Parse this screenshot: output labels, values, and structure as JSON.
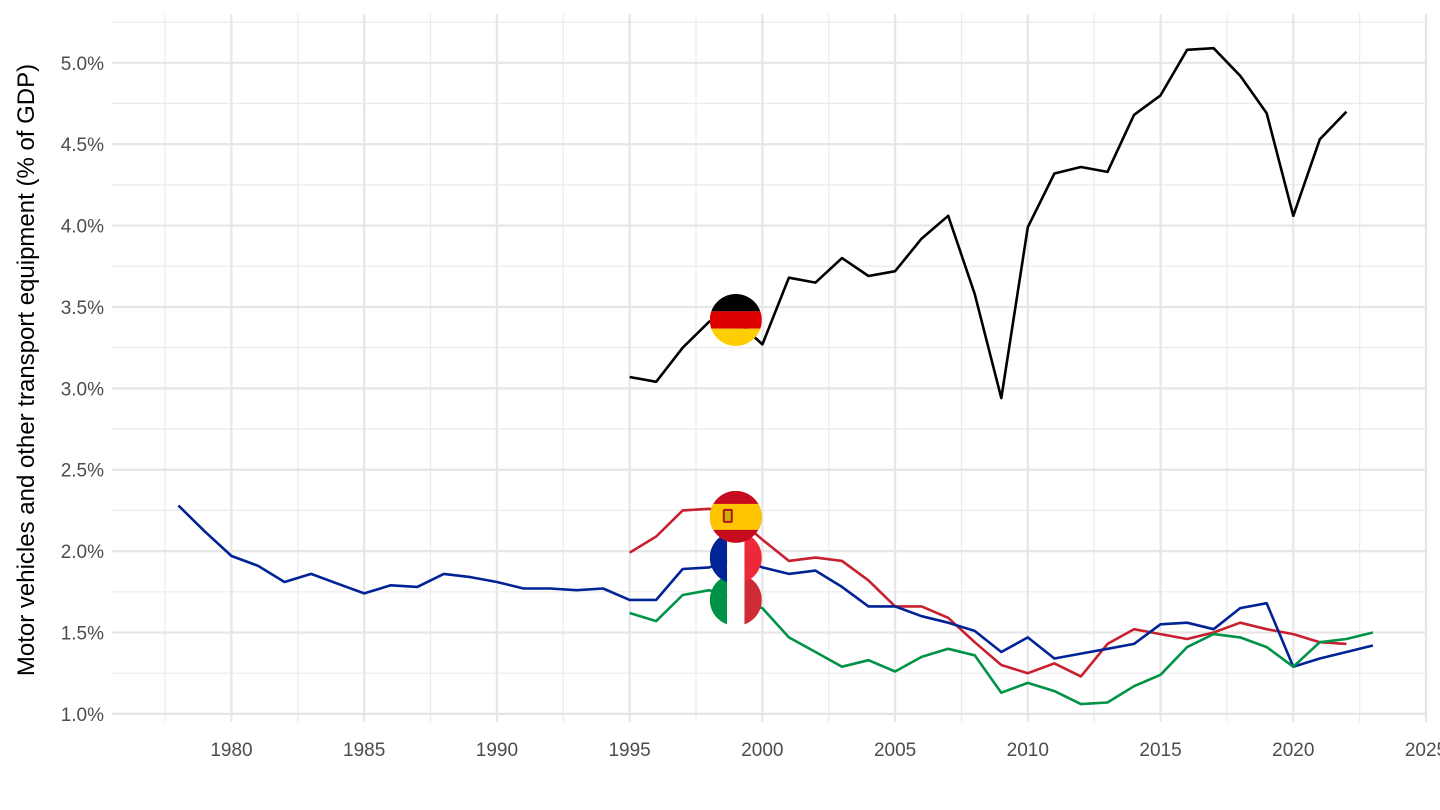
{
  "chart_data": {
    "type": "line",
    "title": "",
    "xlabel": "",
    "ylabel": "Motor vehicles and other transport equipment (% of GDP)",
    "xlim": [
      1975.5,
      2025
    ],
    "ylim": [
      0.95,
      5.3
    ],
    "x_ticks": [
      1980,
      1985,
      1990,
      1995,
      2000,
      2005,
      2010,
      2015,
      2020,
      2025
    ],
    "y_ticks": [
      1.0,
      1.5,
      2.0,
      2.5,
      3.0,
      3.5,
      4.0,
      4.5,
      5.0
    ],
    "y_tick_labels": [
      "1.0%",
      "1.5%",
      "2.0%",
      "2.5%",
      "3.0%",
      "3.5%",
      "4.0%",
      "4.5%",
      "5.0%"
    ],
    "x_tick_labels": [
      "1980",
      "1985",
      "1990",
      "1995",
      "2000",
      "2005",
      "2010",
      "2015",
      "2020",
      "2025"
    ],
    "grid": true,
    "legend": "flags at 1999",
    "flag_year": 1999,
    "series": [
      {
        "flag": "germany",
        "color": "#000000",
        "x": [
          1995,
          1996,
          1997,
          1998,
          1999,
          2000,
          2001,
          2002,
          2003,
          2004,
          2005,
          2006,
          2007,
          2008,
          2009,
          2010,
          2011,
          2012,
          2013,
          2014,
          2015,
          2016,
          2017,
          2018,
          2019,
          2020,
          2021,
          2022
        ],
        "values": [
          3.07,
          3.04,
          3.25,
          3.41,
          3.42,
          3.27,
          3.68,
          3.65,
          3.8,
          3.69,
          3.72,
          3.92,
          4.06,
          3.58,
          2.94,
          3.99,
          4.32,
          4.36,
          4.33,
          4.68,
          4.8,
          5.08,
          5.09,
          4.92,
          4.69,
          4.06,
          4.53,
          4.7
        ]
      },
      {
        "flag": "spain",
        "color": "#c8202f",
        "x": [
          1995,
          1996,
          1997,
          1998,
          1999,
          2000,
          2001,
          2002,
          2003,
          2004,
          2005,
          2006,
          2007,
          2008,
          2009,
          2010,
          2011,
          2012,
          2013,
          2014,
          2015,
          2016,
          2017,
          2018,
          2019,
          2020,
          2021,
          2022
        ],
        "values": [
          1.99,
          2.09,
          2.25,
          2.26,
          2.21,
          2.07,
          1.94,
          1.96,
          1.94,
          1.82,
          1.66,
          1.66,
          1.59,
          1.44,
          1.3,
          1.25,
          1.31,
          1.23,
          1.43,
          1.52,
          1.49,
          1.46,
          1.5,
          1.56,
          1.52,
          1.49,
          1.44,
          1.43
        ]
      },
      {
        "flag": "france",
        "color": "#002395",
        "x": [
          1978,
          1979,
          1980,
          1981,
          1982,
          1983,
          1984,
          1985,
          1986,
          1987,
          1988,
          1989,
          1990,
          1991,
          1992,
          1993,
          1994,
          1995,
          1996,
          1997,
          1998,
          1999,
          2000,
          2001,
          2002,
          2003,
          2004,
          2005,
          2006,
          2007,
          2008,
          2009,
          2010,
          2011,
          2012,
          2013,
          2014,
          2015,
          2016,
          2017,
          2018,
          2019,
          2020,
          2021,
          2022,
          2023
        ],
        "values": [
          2.28,
          2.12,
          1.97,
          1.91,
          1.81,
          1.86,
          1.8,
          1.74,
          1.79,
          1.78,
          1.86,
          1.84,
          1.81,
          1.77,
          1.77,
          1.76,
          1.77,
          1.7,
          1.7,
          1.89,
          1.9,
          1.96,
          1.9,
          1.86,
          1.88,
          1.78,
          1.66,
          1.66,
          1.6,
          1.56,
          1.51,
          1.38,
          1.47,
          1.34,
          1.37,
          1.4,
          1.43,
          1.55,
          1.56,
          1.52,
          1.65,
          1.68,
          1.29,
          1.34,
          1.38,
          1.42
        ]
      },
      {
        "flag": "italy",
        "color": "#009246",
        "x": [
          1995,
          1996,
          1997,
          1998,
          1999,
          2000,
          2001,
          2002,
          2003,
          2004,
          2005,
          2006,
          2007,
          2008,
          2009,
          2010,
          2011,
          2012,
          2013,
          2014,
          2015,
          2016,
          2017,
          2018,
          2019,
          2020,
          2021,
          2022,
          2023
        ],
        "values": [
          1.62,
          1.57,
          1.73,
          1.76,
          1.7,
          1.65,
          1.47,
          1.38,
          1.29,
          1.33,
          1.26,
          1.35,
          1.4,
          1.36,
          1.13,
          1.19,
          1.14,
          1.06,
          1.07,
          1.17,
          1.24,
          1.41,
          1.49,
          1.47,
          1.41,
          1.29,
          1.44,
          1.46,
          1.5
        ]
      }
    ]
  }
}
